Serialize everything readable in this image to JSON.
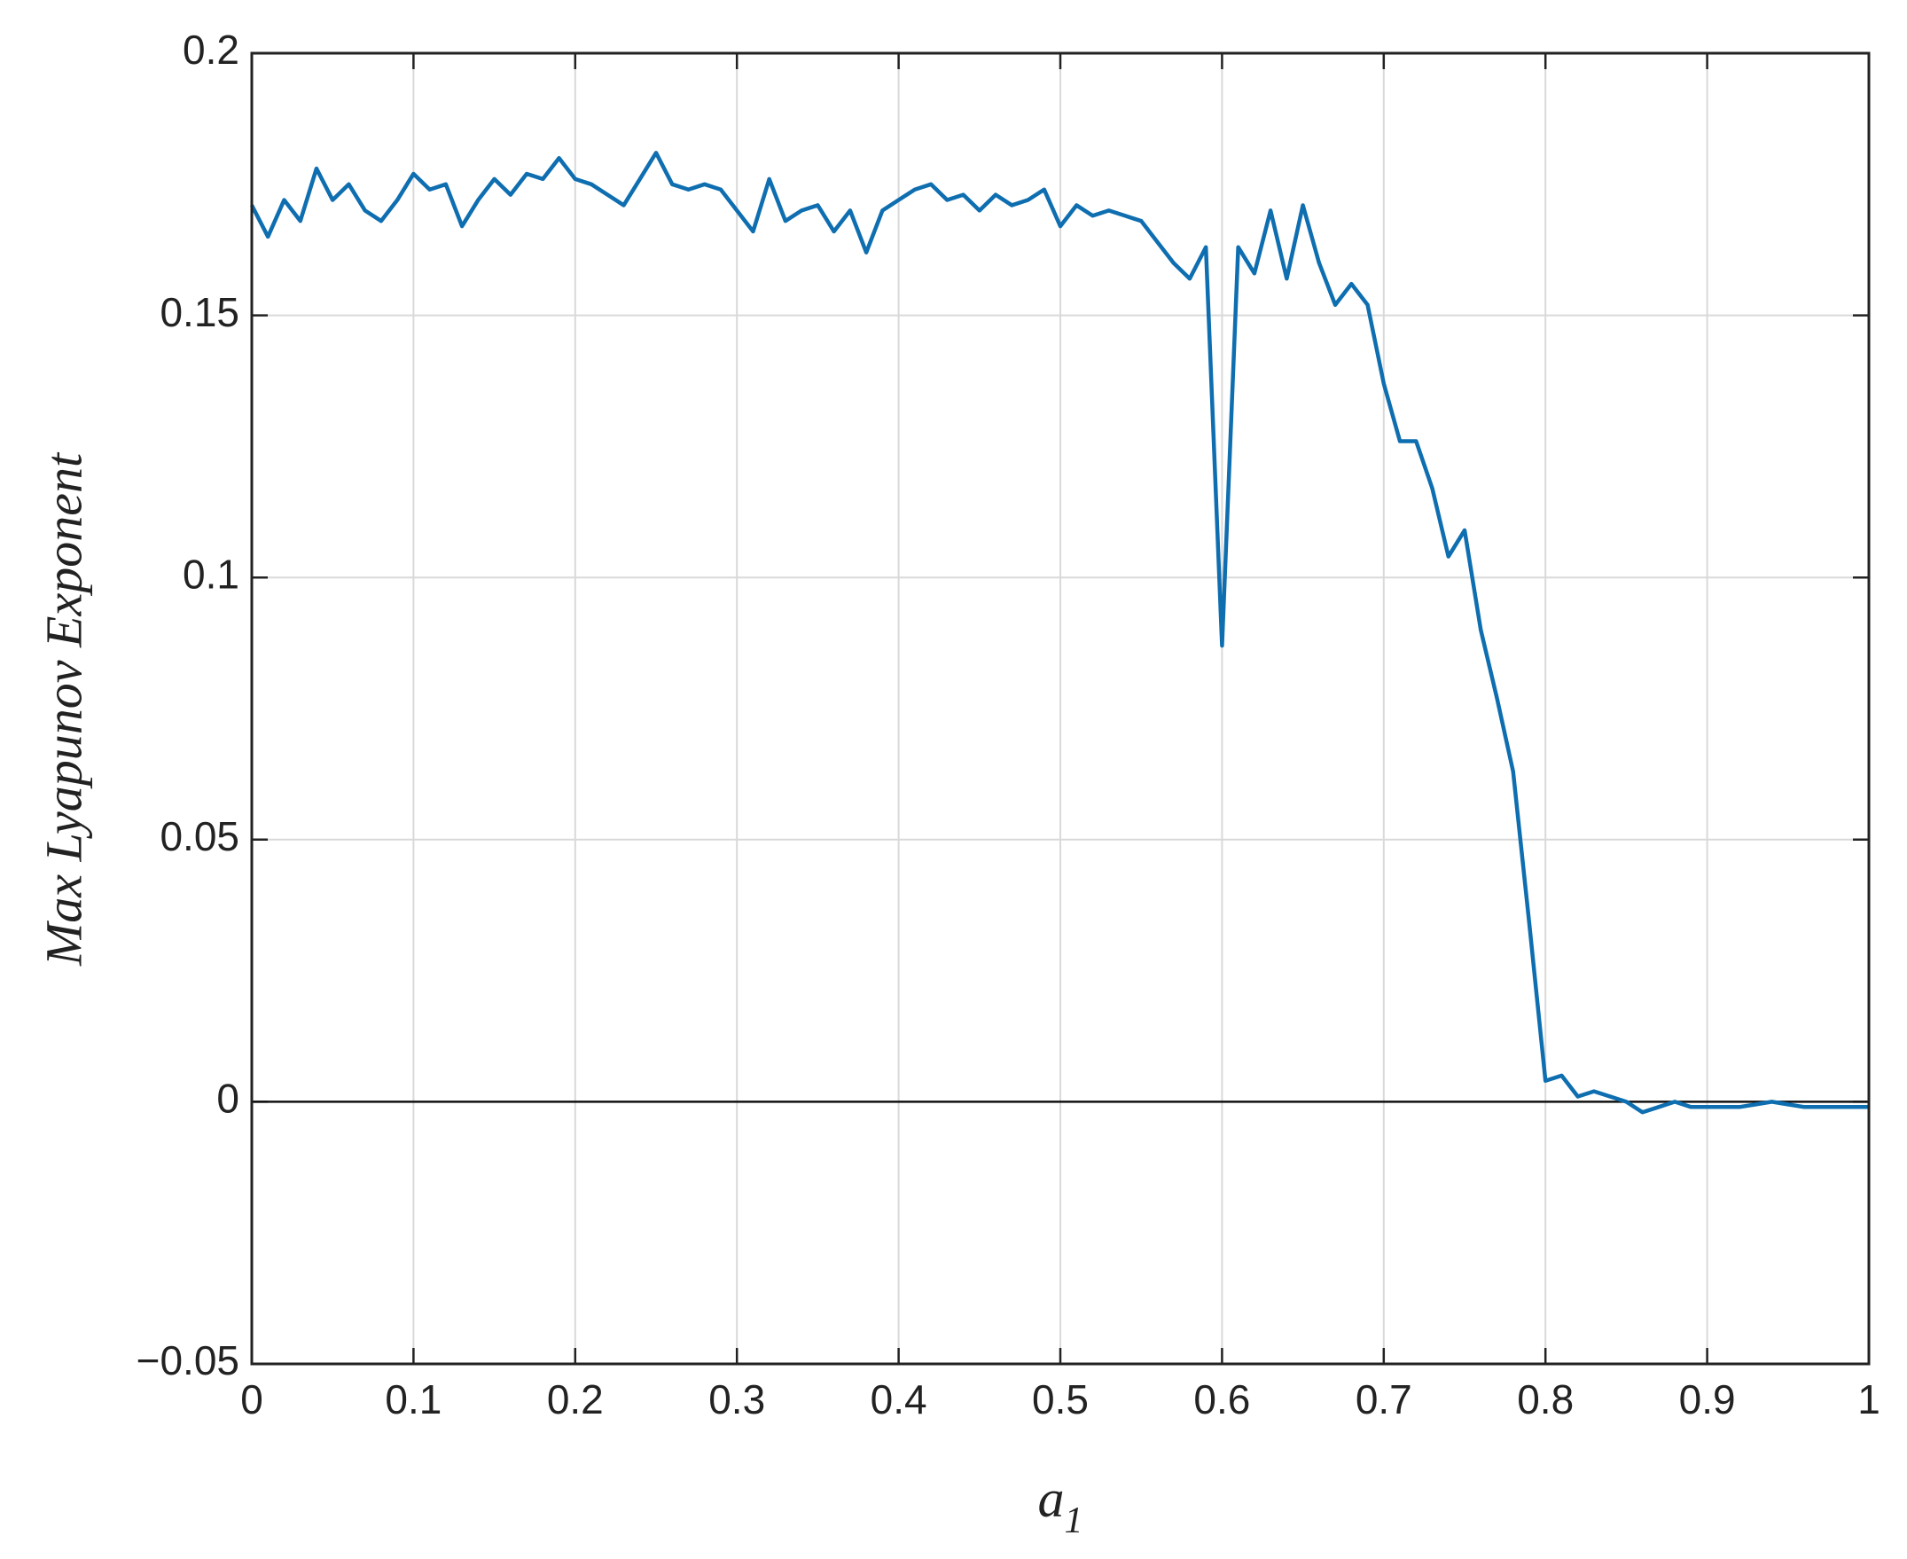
{
  "chart_data": {
    "type": "line",
    "xlabel": {
      "base": "a",
      "sub": "1"
    },
    "ylabel": "Max Lyapunov Exponent",
    "x": [
      0,
      0.01,
      0.02,
      0.03,
      0.04,
      0.05,
      0.06,
      0.07,
      0.08,
      0.09,
      0.1,
      0.11,
      0.12,
      0.13,
      0.14,
      0.15,
      0.16,
      0.17,
      0.18,
      0.19,
      0.2,
      0.21,
      0.22,
      0.23,
      0.24,
      0.25,
      0.26,
      0.27,
      0.28,
      0.29,
      0.3,
      0.31,
      0.32,
      0.33,
      0.34,
      0.35,
      0.36,
      0.37,
      0.38,
      0.39,
      0.4,
      0.41,
      0.42,
      0.43,
      0.44,
      0.45,
      0.46,
      0.47,
      0.48,
      0.49,
      0.5,
      0.51,
      0.52,
      0.53,
      0.54,
      0.55,
      0.56,
      0.57,
      0.58,
      0.59,
      0.6,
      0.61,
      0.62,
      0.63,
      0.64,
      0.65,
      0.66,
      0.67,
      0.68,
      0.69,
      0.7,
      0.71,
      0.72,
      0.73,
      0.74,
      0.75,
      0.76,
      0.77,
      0.78,
      0.79,
      0.8,
      0.81,
      0.82,
      0.83,
      0.84,
      0.85,
      0.86,
      0.87,
      0.88,
      0.89,
      0.9,
      0.91,
      0.92,
      0.93,
      0.94,
      0.95,
      0.96,
      0.97,
      0.98,
      0.99,
      1
    ],
    "series": [
      {
        "color": "#0e6eb0",
        "values": [
          0.171,
          0.165,
          0.172,
          0.168,
          0.178,
          0.172,
          0.175,
          0.17,
          0.168,
          0.172,
          0.177,
          0.174,
          0.175,
          0.167,
          0.172,
          0.176,
          0.173,
          0.177,
          0.176,
          0.18,
          0.176,
          0.175,
          0.173,
          0.171,
          0.176,
          0.181,
          0.175,
          0.174,
          0.175,
          0.174,
          0.17,
          0.166,
          0.176,
          0.168,
          0.17,
          0.171,
          0.166,
          0.17,
          0.162,
          0.17,
          0.172,
          0.174,
          0.175,
          0.172,
          0.173,
          0.17,
          0.173,
          0.171,
          0.172,
          0.174,
          0.167,
          0.171,
          0.169,
          0.17,
          0.169,
          0.168,
          0.164,
          0.16,
          0.157,
          0.163,
          0.087,
          0.163,
          0.158,
          0.17,
          0.157,
          0.171,
          0.16,
          0.152,
          0.156,
          0.152,
          0.137,
          0.126,
          0.126,
          0.117,
          0.104,
          0.109,
          0.09,
          0.077,
          0.063,
          0.034,
          0.004,
          0.005,
          0.001,
          0.002,
          0.001,
          0.0,
          -0.002,
          -0.001,
          0.0,
          -0.001,
          -0.001,
          -0.001,
          -0.001,
          -0.0005,
          0.0,
          -0.0005,
          -0.001,
          -0.001,
          -0.001,
          -0.001,
          -0.001
        ]
      }
    ],
    "xlim": [
      0,
      1
    ],
    "ylim": [
      -0.05,
      0.2
    ],
    "xticks": [
      0,
      0.1,
      0.2,
      0.3,
      0.4,
      0.5,
      0.6,
      0.7,
      0.8,
      0.9,
      1
    ],
    "yticks": [
      {
        "value": -0.05,
        "label": "−0.05"
      },
      0,
      0.05,
      0.1,
      0.15,
      0.2
    ],
    "grid": true
  }
}
